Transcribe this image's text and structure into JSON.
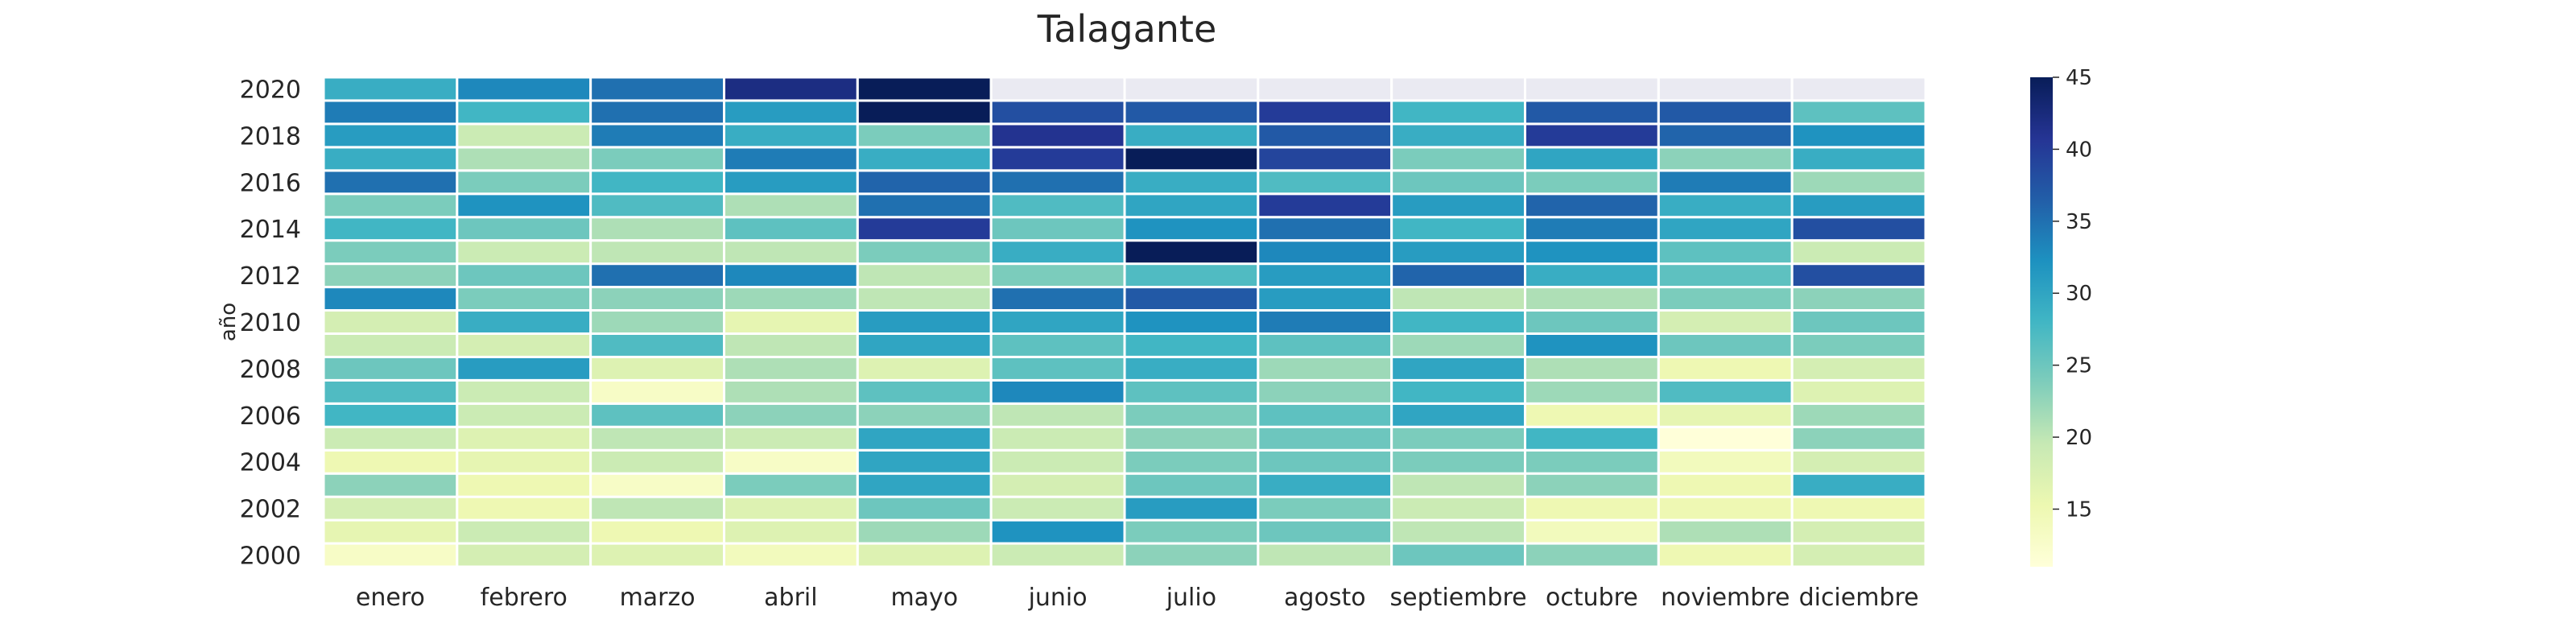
{
  "chart_data": {
    "type": "heatmap",
    "title": "Talagante",
    "xlabel": "",
    "ylabel": "año",
    "months": [
      "enero",
      "febrero",
      "marzo",
      "abril",
      "mayo",
      "junio",
      "julio",
      "agosto",
      "septiembre",
      "octubre",
      "noviembre",
      "diciembre"
    ],
    "years": [
      2000,
      2001,
      2002,
      2003,
      2004,
      2005,
      2006,
      2007,
      2008,
      2009,
      2010,
      2011,
      2012,
      2013,
      2014,
      2015,
      2016,
      2017,
      2018,
      2019,
      2020
    ],
    "year_tick_labels": [
      "2000",
      "2002",
      "2004",
      "2006",
      "2008",
      "2010",
      "2012",
      "2014",
      "2016",
      "2018",
      "2020"
    ],
    "colorbar": {
      "min": 11,
      "max": 45,
      "ticks": [
        15,
        20,
        25,
        30,
        35,
        40,
        45
      ],
      "colormap": "YlGnBu"
    },
    "missing_color": "#eaeaf2",
    "values": [
      [
        13,
        18,
        17,
        14,
        17,
        19,
        23,
        20,
        25,
        23,
        15,
        18
      ],
      [
        16,
        19,
        15,
        17,
        22,
        32,
        24,
        25,
        20,
        14,
        21,
        18
      ],
      [
        18,
        15,
        20,
        17,
        25,
        19,
        31,
        24,
        19,
        15,
        15,
        15
      ],
      [
        23,
        15,
        13,
        24,
        30,
        18,
        25,
        29,
        20,
        23,
        15,
        29
      ],
      [
        15,
        16,
        19,
        13,
        30,
        19,
        24,
        25,
        24,
        24,
        14,
        18
      ],
      [
        19,
        17,
        20,
        19,
        30,
        19,
        23,
        25,
        24,
        28,
        11,
        23
      ],
      [
        28,
        19,
        26,
        23,
        23,
        20,
        24,
        26,
        30,
        15,
        16,
        22
      ],
      [
        27,
        19,
        13,
        21,
        26,
        33,
        26,
        23,
        28,
        22,
        27,
        17
      ],
      [
        25,
        31,
        17,
        21,
        17,
        26,
        29,
        22,
        30,
        21,
        15,
        18
      ],
      [
        19,
        18,
        27,
        20,
        30,
        26,
        28,
        26,
        22,
        32,
        25,
        24
      ],
      [
        18,
        29,
        22,
        16,
        31,
        30,
        32,
        34,
        28,
        25,
        18,
        25
      ],
      [
        33,
        24,
        23,
        22,
        20,
        35,
        37,
        31,
        20,
        21,
        24,
        23
      ],
      [
        23,
        25,
        35,
        33,
        20,
        24,
        27,
        31,
        36,
        29,
        26,
        38
      ],
      [
        24,
        19,
        20,
        20,
        24,
        29,
        45,
        33,
        31,
        32,
        26,
        19
      ],
      [
        28,
        25,
        21,
        26,
        40,
        25,
        32,
        35,
        28,
        34,
        30,
        38
      ],
      [
        24,
        32,
        27,
        21,
        35,
        27,
        30,
        40,
        31,
        36,
        29,
        31
      ],
      [
        35,
        24,
        28,
        31,
        36,
        35,
        29,
        27,
        25,
        24,
        34,
        22
      ],
      [
        29,
        21,
        24,
        34,
        29,
        40,
        45,
        39,
        24,
        30,
        23,
        29
      ],
      [
        31,
        19,
        34,
        29,
        24,
        41,
        29,
        37,
        29,
        40,
        36,
        32
      ],
      [
        34,
        28,
        35,
        31,
        45,
        38,
        37,
        40,
        28,
        37,
        37,
        26
      ],
      [
        29,
        33,
        35,
        42,
        45,
        null,
        null,
        null,
        null,
        null,
        null,
        null
      ]
    ]
  }
}
